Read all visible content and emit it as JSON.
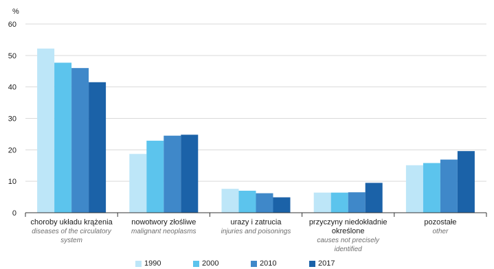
{
  "chart_data": {
    "type": "bar",
    "ylabel": "%",
    "ylim": [
      0,
      60
    ],
    "yticks": [
      0,
      10,
      20,
      30,
      40,
      50,
      60
    ],
    "grid": true,
    "legend_position": "bottom",
    "categories": [
      {
        "pl": "choroby układu krążenia",
        "en": "diseases of the circulatory system"
      },
      {
        "pl": "nowotwory złośliwe",
        "en": "malignant neoplasms"
      },
      {
        "pl": "urazy i zatrucia",
        "en": "injuries and poisonings"
      },
      {
        "pl": "przyczyny niedokładnie określone",
        "en": "causes not precisely identified"
      },
      {
        "pl": "pozostałe",
        "en": "other"
      }
    ],
    "series": [
      {
        "name": "1990",
        "color": "#bde6f8",
        "values": [
          52.2,
          18.7,
          7.6,
          6.4,
          15.1
        ]
      },
      {
        "name": "2000",
        "color": "#5cc4ed",
        "values": [
          47.7,
          22.9,
          7.0,
          6.4,
          15.8
        ]
      },
      {
        "name": "2010",
        "color": "#3f88c9",
        "values": [
          46.0,
          24.5,
          6.2,
          6.5,
          16.9
        ]
      },
      {
        "name": "2017",
        "color": "#1b62a8",
        "values": [
          41.5,
          24.8,
          4.9,
          9.5,
          19.6
        ]
      }
    ]
  }
}
